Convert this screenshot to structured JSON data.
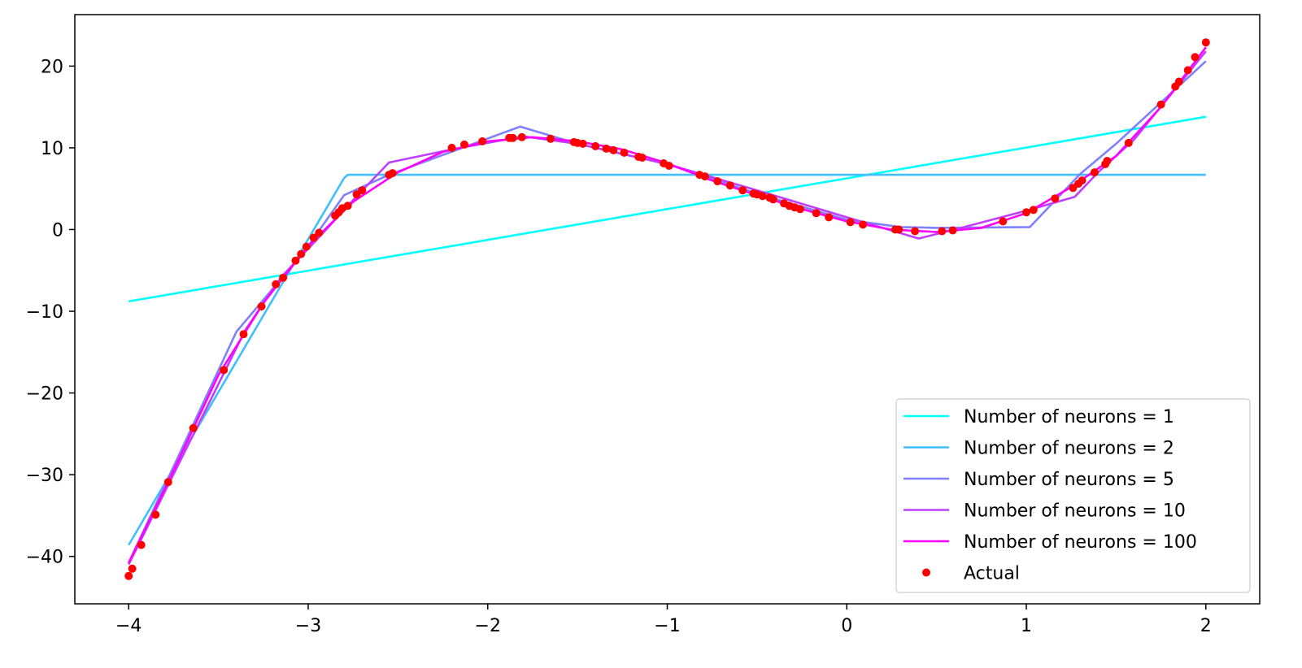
{
  "chart_data": {
    "type": "line",
    "title": "",
    "xlabel": "",
    "ylabel": "",
    "xlim": [
      -4.3,
      2.3
    ],
    "ylim": [
      -45.8,
      26.3
    ],
    "xticks": [
      -4,
      -3,
      -2,
      -1,
      0,
      1,
      2
    ],
    "yticks": [
      -40,
      -30,
      -20,
      -10,
      0,
      10,
      20
    ],
    "grid": false,
    "legend_position": "bottom-right",
    "series": [
      {
        "name": "Number of neurons = 1",
        "color": "#00ffff",
        "style": "line",
        "x": [
          -4,
          2
        ],
        "y": [
          -8.8,
          13.8
        ]
      },
      {
        "name": "Number of neurons = 2",
        "color": "#3fbfff",
        "style": "line",
        "x": [
          -4,
          -2.8,
          -2.78,
          2
        ],
        "y": [
          -38.6,
          6.3,
          6.7,
          6.7
        ]
      },
      {
        "name": "Number of neurons = 5",
        "color": "#7f7fff",
        "style": "line",
        "x": [
          -4,
          -3.4,
          -3.15,
          -3.0,
          -2.8,
          -2.55,
          -1.82,
          -1.5,
          -1.0,
          -0.5,
          0.0,
          0.3,
          0.5,
          1.02,
          1.3,
          1.5,
          2.0
        ],
        "y": [
          -40.8,
          -12.5,
          -6.0,
          -2.0,
          4.2,
          6.7,
          12.6,
          10.5,
          8.0,
          4.4,
          1.2,
          0.3,
          0.2,
          0.3,
          6.8,
          10.5,
          20.6
        ]
      },
      {
        "name": "Number of neurons = 10",
        "color": "#bf3fff",
        "style": "line",
        "x": [
          -4,
          -3.35,
          -3.15,
          -2.95,
          -2.75,
          -2.55,
          -2.2,
          -1.8,
          -1.5,
          -1.0,
          -0.5,
          0.0,
          0.4,
          0.6,
          1.0,
          1.27,
          1.4,
          1.6,
          2.0
        ],
        "y": [
          -41.0,
          -12.3,
          -5.8,
          -1.2,
          3.6,
          8.2,
          9.8,
          11.4,
          10.5,
          8.0,
          4.8,
          1.5,
          -1.1,
          0.0,
          2.3,
          4.0,
          7.0,
          11.0,
          21.8
        ]
      },
      {
        "name": "Number of neurons = 100",
        "color": "#ff00ff",
        "style": "line",
        "x": [
          -4,
          -3.75,
          -3.5,
          -3.25,
          -3.0,
          -2.75,
          -2.5,
          -2.25,
          -2.0,
          -1.75,
          -1.5,
          -1.25,
          -1.0,
          -0.75,
          -0.5,
          -0.25,
          0.0,
          0.25,
          0.5,
          0.75,
          1.0,
          1.25,
          1.5,
          1.75,
          2.0
        ],
        "y": [
          -40.8,
          -29.5,
          -17.8,
          -9.0,
          -2.0,
          3.4,
          7.0,
          9.5,
          10.8,
          11.3,
          10.8,
          9.8,
          8.1,
          6.0,
          4.2,
          2.5,
          1.0,
          0.0,
          -0.3,
          0.2,
          2.0,
          5.2,
          9.0,
          15.0,
          22.3
        ]
      },
      {
        "name": "Actual",
        "color": "#ff0000",
        "style": "points",
        "x": [
          -4.0,
          -3.98,
          -3.93,
          -3.85,
          -3.78,
          -3.64,
          -3.47,
          -3.36,
          -3.26,
          -3.18,
          -3.14,
          -3.07,
          -3.04,
          -3.01,
          -2.97,
          -2.94,
          -2.85,
          -2.83,
          -2.81,
          -2.78,
          -2.73,
          -2.7,
          -2.55,
          -2.53,
          -2.2,
          -2.13,
          -2.03,
          -1.88,
          -1.86,
          -1.81,
          -1.65,
          -1.52,
          -1.5,
          -1.47,
          -1.4,
          -1.34,
          -1.3,
          -1.24,
          -1.16,
          -1.14,
          -1.02,
          -0.99,
          -0.82,
          -0.79,
          -0.72,
          -0.65,
          -0.58,
          -0.52,
          -0.5,
          -0.47,
          -0.43,
          -0.41,
          -0.35,
          -0.32,
          -0.29,
          -0.26,
          -0.17,
          -0.1,
          0.02,
          0.09,
          0.27,
          0.29,
          0.38,
          0.53,
          0.59,
          0.87,
          1.0,
          1.04,
          1.16,
          1.26,
          1.29,
          1.31,
          1.38,
          1.44,
          1.45,
          1.57,
          1.75,
          1.83,
          1.85,
          1.9,
          1.94,
          2.0
        ],
        "y": [
          -42.4,
          -41.5,
          -38.6,
          -34.9,
          -30.9,
          -24.3,
          -17.2,
          -12.8,
          -9.4,
          -6.7,
          -5.9,
          -3.8,
          -3.0,
          -2.1,
          -1.0,
          -0.4,
          1.7,
          2.1,
          2.6,
          2.9,
          4.3,
          4.8,
          6.7,
          6.9,
          10.0,
          10.4,
          10.8,
          11.2,
          11.2,
          11.3,
          11.1,
          10.7,
          10.6,
          10.5,
          10.2,
          9.9,
          9.7,
          9.4,
          8.9,
          8.8,
          8.1,
          7.8,
          6.7,
          6.5,
          5.9,
          5.4,
          4.8,
          4.4,
          4.3,
          4.1,
          3.9,
          3.7,
          3.2,
          2.9,
          2.7,
          2.5,
          2.0,
          1.5,
          0.9,
          0.6,
          0.0,
          0.0,
          -0.2,
          -0.2,
          -0.1,
          1.0,
          2.1,
          2.4,
          3.8,
          5.1,
          5.6,
          6.0,
          7.0,
          8.0,
          8.4,
          10.6,
          15.3,
          17.5,
          18.1,
          19.5,
          21.1,
          22.9
        ]
      }
    ]
  }
}
